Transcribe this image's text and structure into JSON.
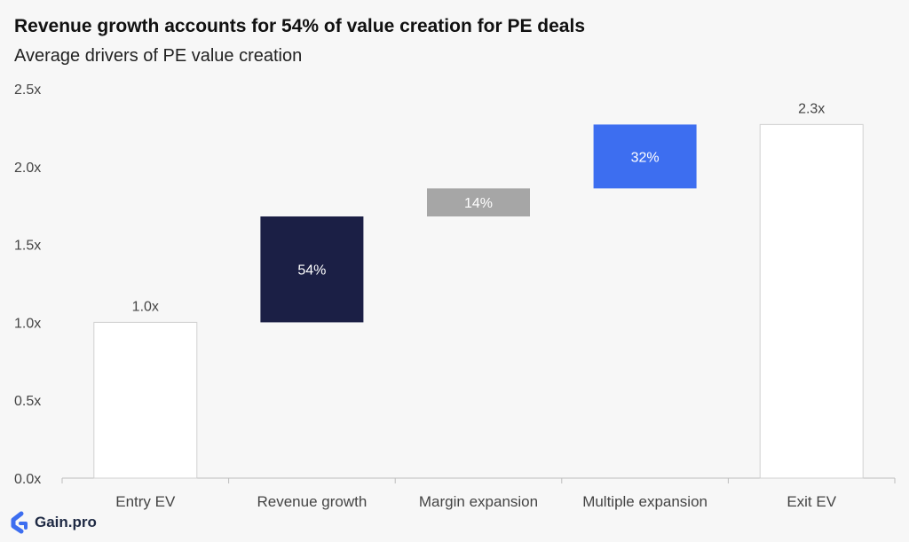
{
  "chart_data": {
    "type": "bar",
    "title": "Revenue growth accounts for 54% of value creation for PE deals",
    "subtitle": "Average drivers of PE value creation",
    "categories": [
      "Entry EV",
      "Revenue growth",
      "Margin expansion",
      "Multiple expansion",
      "Exit EV"
    ],
    "bars": [
      {
        "category": "Entry EV",
        "start": 0,
        "end": 1.0,
        "label": "1.0x",
        "label_position": "above",
        "color": "#ffffff",
        "border": "#d0d0d0",
        "label_color": "#444444"
      },
      {
        "category": "Revenue growth",
        "start": 1.0,
        "end": 1.68,
        "label": "54%",
        "label_position": "inside",
        "color": "#1b1f45",
        "label_color": "#ffffff"
      },
      {
        "category": "Margin expansion",
        "start": 1.68,
        "end": 1.86,
        "label": "14%",
        "label_position": "inside",
        "color": "#a6a6a6",
        "label_color": "#ffffff"
      },
      {
        "category": "Multiple expansion",
        "start": 1.86,
        "end": 2.27,
        "label": "32%",
        "label_position": "inside",
        "color": "#3d6ef0",
        "label_color": "#ffffff"
      },
      {
        "category": "Exit EV",
        "start": 0,
        "end": 2.27,
        "label": "2.3x",
        "label_position": "above",
        "color": "#ffffff",
        "border": "#d0d0d0",
        "label_color": "#444444"
      }
    ],
    "yticks": [
      "0.0x",
      "0.5x",
      "1.0x",
      "1.5x",
      "2.0x",
      "2.5x"
    ],
    "ylim": [
      0,
      2.5
    ],
    "grid": false,
    "legend": "none"
  },
  "logo": {
    "text": "Gain.pro",
    "color": "#3d6ef0"
  }
}
